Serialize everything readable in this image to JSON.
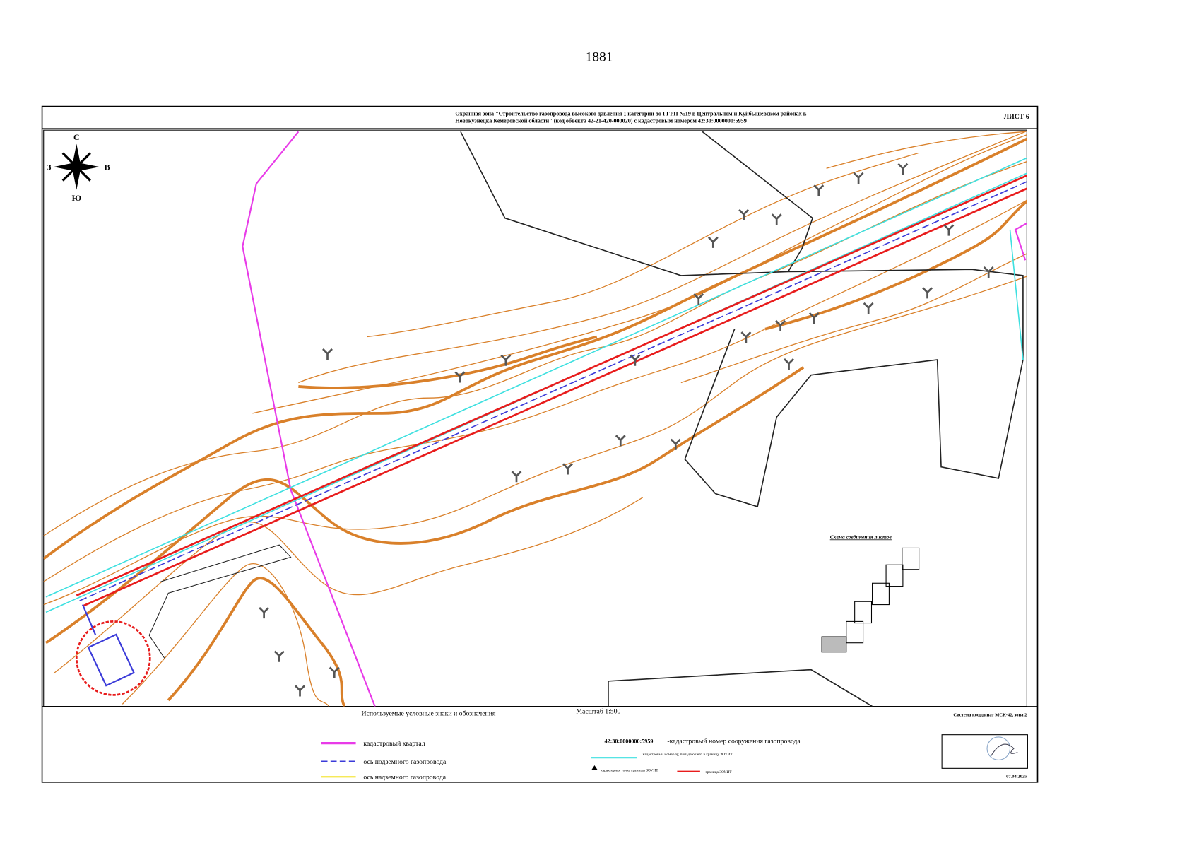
{
  "page_number": "1881",
  "header": {
    "title_line1": "Охранная зона \"Строительство газопровода высокого давления 1 категории до ГГРП №19 в Центральном и Куйбышевском районах г.",
    "title_line2": "Новокузнецка Кемеровской области\" (код объекта 42-21-420-000020) с кадастровым номером 42:30:0000000:5959",
    "sheet": "ЛИСТ 6"
  },
  "map": {
    "compass": {
      "n": "С",
      "s": "Ю",
      "w": "З",
      "e": "В"
    },
    "sheet_scheme_title": "Схема соединения листов"
  },
  "footer": {
    "legend_title": "Используемые условные знаки и обозначения",
    "scale": "Масштаб 1:500",
    "coordinate_system": "Система координат МСК-42, зона 2",
    "date": "07.04.2025"
  },
  "legend": {
    "left": [
      "кадастровый квартал",
      "ось подземного газопровода",
      "ось надземного газопровода"
    ],
    "cadastral_number": "42:30:0000000:5959",
    "cadastral_number_desc": "-кадастровый номер сооружения газопровода",
    "land_plot_desc": "кадастровый номер зу, попадающего в границу ЗОУИТ",
    "point_desc": "характерная точка границы ЗОУИТ",
    "boundary_desc": "граница ЗОУИТ"
  }
}
